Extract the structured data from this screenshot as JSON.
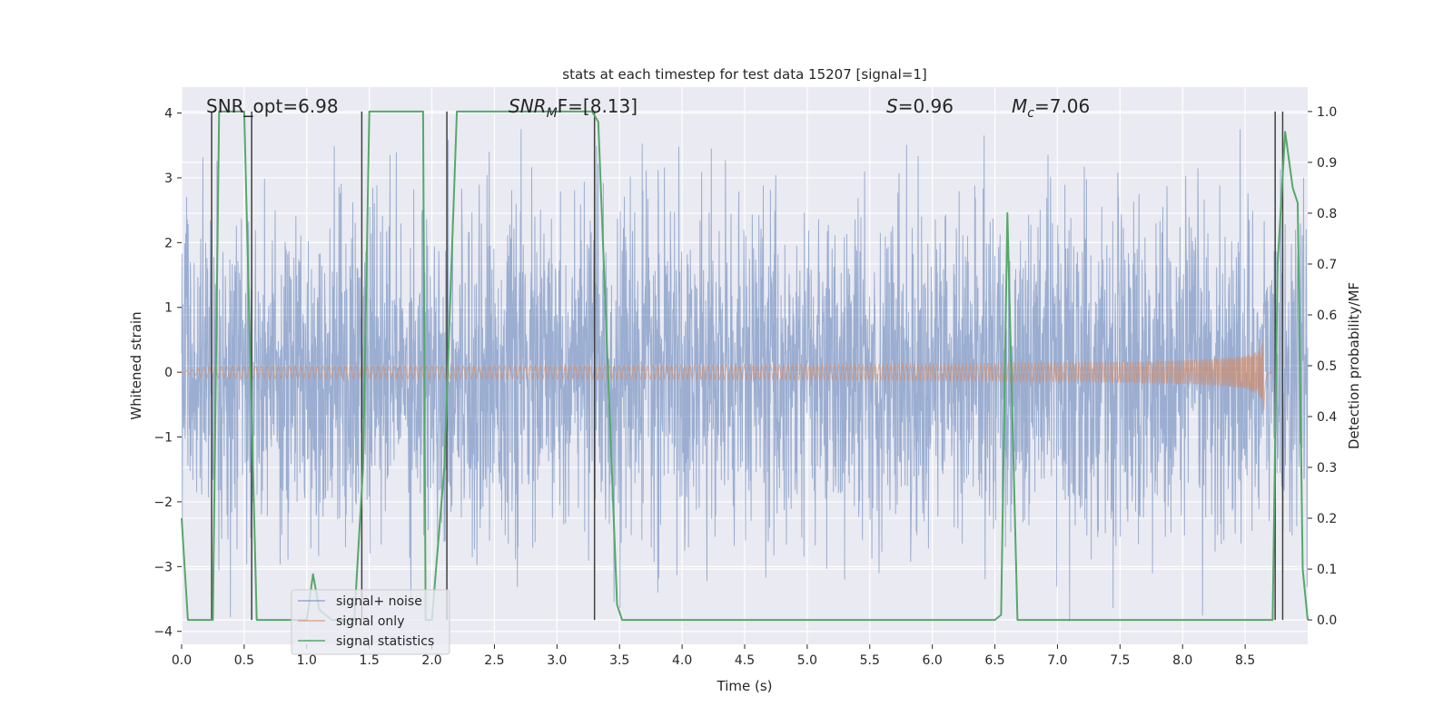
{
  "chart_data": {
    "type": "line",
    "title": "stats at each timestep for test data 15207 [signal=1]",
    "xlabel": "Time (s)",
    "ylabel_left": "Whitened strain",
    "ylabel_right": "Detection probability/MF",
    "xlim": [
      0.0,
      9.0
    ],
    "ylim_left": [
      -4.2,
      4.4
    ],
    "ylim_right": [
      -0.048,
      1.048
    ],
    "x_ticks": [
      "0.0",
      "0.5",
      "1.0",
      "1.5",
      "2.0",
      "2.5",
      "3.0",
      "3.5",
      "4.0",
      "4.5",
      "5.0",
      "5.5",
      "6.0",
      "6.5",
      "7.0",
      "7.5",
      "8.0",
      "8.5"
    ],
    "x_tick_values": [
      0.0,
      0.5,
      1.0,
      1.5,
      2.0,
      2.5,
      3.0,
      3.5,
      4.0,
      4.5,
      5.0,
      5.5,
      6.0,
      6.5,
      7.0,
      7.5,
      8.0,
      8.5
    ],
    "y_left_ticks": [
      "−4",
      "−3",
      "−2",
      "−1",
      "0",
      "1",
      "2",
      "3",
      "4"
    ],
    "y_left_tick_values": [
      -4,
      -3,
      -2,
      -1,
      0,
      1,
      2,
      3,
      4
    ],
    "y_right_ticks": [
      "0.0",
      "0.1",
      "0.2",
      "0.3",
      "0.4",
      "0.5",
      "0.6",
      "0.7",
      "0.8",
      "0.9",
      "1.0"
    ],
    "y_right_tick_values": [
      0.0,
      0.1,
      0.2,
      0.3,
      0.4,
      0.5,
      0.6,
      0.7,
      0.8,
      0.9,
      1.0
    ],
    "annotations": {
      "snr_opt": "SNR_opt=6.98",
      "snr_mf_main": "SNR",
      "snr_mf_sub": "M",
      "snr_mf_rest": "F=[8.13]",
      "s_main": "S",
      "s_rest": "=0.96",
      "mc_main": "M",
      "mc_sub": "c",
      "mc_rest": "=7.06"
    },
    "legend": {
      "placement": "lower-left",
      "entries": [
        "signal+ noise",
        "signal only",
        "signal statistics"
      ]
    },
    "series": [
      {
        "name": "signal+ noise",
        "axis": "left",
        "color": "#4c72b0",
        "description": "whitened strain noise, roughly gaussian with amplitude about 1.3, peaks near 3.7",
        "noise_std": 1.25
      },
      {
        "name": "signal only",
        "axis": "left",
        "color": "#dd8452",
        "chirp": {
          "start": 0.0,
          "merger": 8.65,
          "end": 8.72,
          "peak_amplitude": 1.0
        }
      },
      {
        "name": "signal statistics",
        "axis": "right",
        "color": "#55a868",
        "x": [
          0.0,
          0.05,
          0.25,
          0.3,
          0.5,
          0.6,
          0.7,
          0.8,
          0.95,
          1.0,
          1.05,
          1.1,
          1.2,
          1.3,
          1.38,
          1.45,
          1.5,
          1.8,
          1.93,
          1.95,
          2.0,
          2.1,
          2.2,
          2.3,
          3.28,
          3.33,
          3.48,
          3.52,
          3.6,
          6.5,
          6.55,
          6.6,
          6.65,
          6.68,
          6.72,
          7.0,
          8.72,
          8.76,
          8.82,
          8.88,
          8.92,
          8.96,
          9.0
        ],
        "y": [
          0.2,
          0.0,
          0.0,
          1.0,
          1.0,
          0.0,
          0.0,
          0.0,
          0.0,
          0.0,
          0.09,
          0.02,
          0.0,
          0.0,
          0.0,
          0.3,
          1.0,
          1.0,
          1.0,
          0.0,
          0.0,
          0.3,
          1.0,
          1.0,
          1.0,
          0.98,
          0.03,
          0.0,
          0.0,
          0.0,
          0.01,
          0.8,
          0.3,
          0.0,
          0.0,
          0.0,
          0.0,
          0.7,
          0.96,
          0.85,
          0.82,
          0.1,
          0.0
        ]
      }
    ],
    "vertical_lines_x": [
      0.24,
      0.56,
      1.44,
      2.12,
      3.3,
      8.74,
      8.8
    ],
    "colors": {
      "axes_bg": "#eaeaf2",
      "grid": "#ffffff",
      "vline": "#404040"
    }
  }
}
